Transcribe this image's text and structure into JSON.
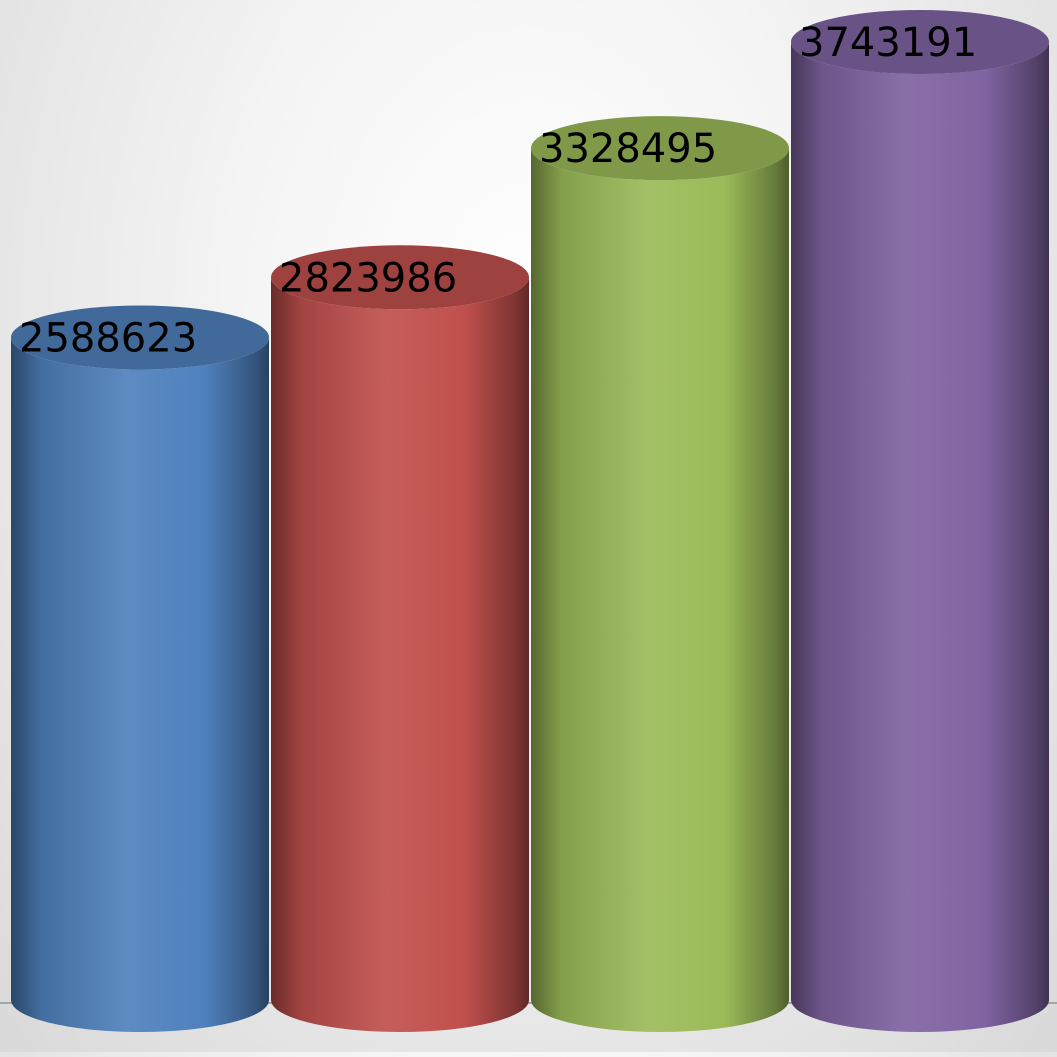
{
  "chart_data": {
    "type": "bar",
    "style": "3d-cylinder",
    "categories": [
      "",
      "",
      "",
      ""
    ],
    "series": [
      {
        "values": [
          2588623,
          2823986,
          3328495,
          3743191
        ]
      }
    ],
    "data_labels": [
      "2588623",
      "2823986",
      "3328495",
      "3743191"
    ],
    "colors": [
      "#4f81bd",
      "#c0504d",
      "#9bbb59",
      "#8064a2"
    ],
    "title": "",
    "xlabel": "",
    "ylabel": "",
    "legend": "none",
    "grid": false
  }
}
